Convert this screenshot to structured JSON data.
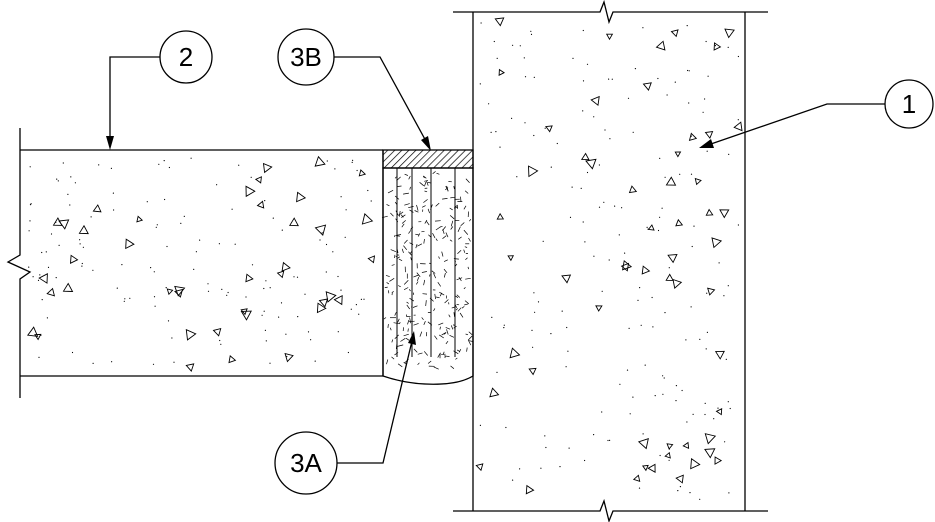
{
  "callouts": {
    "c1": "1",
    "c2": "2",
    "c3a": "3A",
    "c3b": "3B"
  },
  "colors": {
    "line": "#000000",
    "background": "#ffffff"
  }
}
